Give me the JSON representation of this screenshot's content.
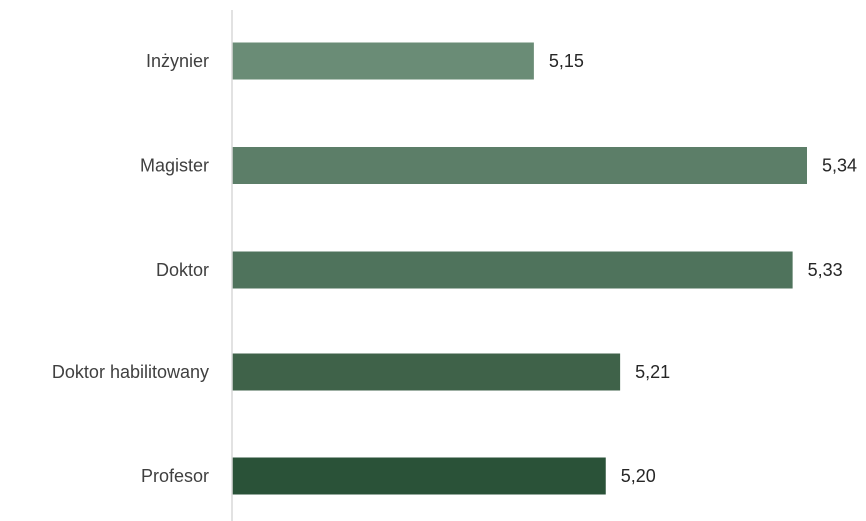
{
  "chart_data": {
    "type": "bar",
    "orientation": "horizontal",
    "categories": [
      "Inżynier",
      "Magister",
      "Doktor",
      "Doktor habilitowany",
      "Profesor"
    ],
    "values": [
      5.15,
      5.34,
      5.33,
      5.21,
      5.2
    ],
    "value_labels": [
      "5,15",
      "5,34",
      "5,33",
      "5,21",
      "5,20"
    ],
    "title": "",
    "xlabel": "",
    "ylabel": "",
    "xlim": [
      4.94,
      5.34
    ],
    "grid": false,
    "legend": "none",
    "colors": [
      "#6a8c76",
      "#5c7e68",
      "#4f735c",
      "#3f6249",
      "#2a5238"
    ],
    "axis_color": "#d9d9d9"
  }
}
